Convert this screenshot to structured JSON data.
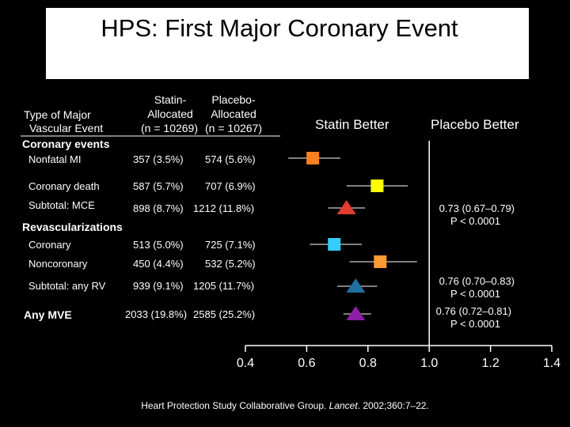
{
  "title": "HPS: First Major Coronary Event",
  "headers": {
    "type_line1": "Type of Major",
    "type_line2": "Vascular Event",
    "statin_line1": "Statin-",
    "statin_line2": "Allocated",
    "statin_line3": "(n = 10269)",
    "placebo_line1": "Placebo-",
    "placebo_line2": "Allocated",
    "placebo_line3": "(n = 10267)",
    "statin_better": "Statin Better",
    "placebo_better": "Placebo Better"
  },
  "sections": {
    "coronary_events": "Coronary events",
    "revascularizations": "Revascularizations"
  },
  "rows": [
    {
      "label": "Nonfatal MI",
      "statin": "357 (3.5%)",
      "placebo": "574 (5.6%)",
      "shape": "square",
      "color": "#ff7f1f",
      "est": 0.62,
      "lo": 0.54,
      "hi": 0.71
    },
    {
      "label": "Coronary death",
      "statin": "587 (5.7%)",
      "placebo": "707 (6.9%)",
      "shape": "square",
      "color": "#ffff00",
      "est": 0.83,
      "lo": 0.73,
      "hi": 0.93
    },
    {
      "label": "Subtotal: MCE",
      "statin": "898 (8.7%)",
      "placebo": "1212 (11.8%)",
      "shape": "triangle",
      "color": "#e03c31",
      "est": 0.73,
      "lo": 0.67,
      "hi": 0.79
    },
    {
      "label": "Coronary",
      "statin": "513 (5.0%)",
      "placebo": "725 (7.1%)",
      "shape": "square",
      "color": "#33ccff",
      "est": 0.69,
      "lo": 0.61,
      "hi": 0.78
    },
    {
      "label": "Noncoronary",
      "statin": "450 (4.4%)",
      "placebo": "532 (5.2%)",
      "shape": "square",
      "color": "#ff9933",
      "est": 0.84,
      "lo": 0.74,
      "hi": 0.96
    },
    {
      "label": "Subtotal: any RV",
      "statin": "939 (9.1%)",
      "placebo": "1205 (11.7%)",
      "shape": "triangle",
      "color": "#1f6fa0",
      "est": 0.76,
      "lo": 0.7,
      "hi": 0.83
    },
    {
      "label": "Any MVE",
      "statin": "2033 (19.8%)",
      "placebo": "2585 (25.2%)",
      "shape": "triangle",
      "color": "#8b1fa6",
      "est": 0.76,
      "lo": 0.72,
      "hi": 0.81
    }
  ],
  "stats": [
    {
      "line1": "0.73 (0.67–0.79)",
      "line2": "P < 0.0001"
    },
    {
      "line1": "0.76 (0.70–0.83)",
      "line2": "P < 0.0001"
    },
    {
      "line1": "0.76 (0.72–0.81)",
      "line2": "P < 0.0001"
    }
  ],
  "axis": {
    "ticks": [
      "0.4",
      "0.6",
      "0.8",
      "1.0",
      "1.2",
      "1.4"
    ],
    "tick_values": [
      0.4,
      0.6,
      0.8,
      1.0,
      1.2,
      1.4
    ],
    "min": 0.4,
    "max": 1.4
  },
  "citation": {
    "prefix": "Heart Protection Study Collaborative Group. ",
    "journal": "Lancet",
    "suffix": ". 2002;360:7–22."
  },
  "chart_data": {
    "type": "scatter",
    "title": "HPS: First Major Coronary Event",
    "xlim": [
      0.4,
      1.4
    ],
    "categories": [
      "Nonfatal MI",
      "Coronary death",
      "Subtotal: MCE",
      "Coronary",
      "Noncoronary",
      "Subtotal: any RV",
      "Any MVE"
    ],
    "values": [
      0.62,
      0.83,
      0.73,
      0.69,
      0.84,
      0.76,
      0.76
    ]
  }
}
